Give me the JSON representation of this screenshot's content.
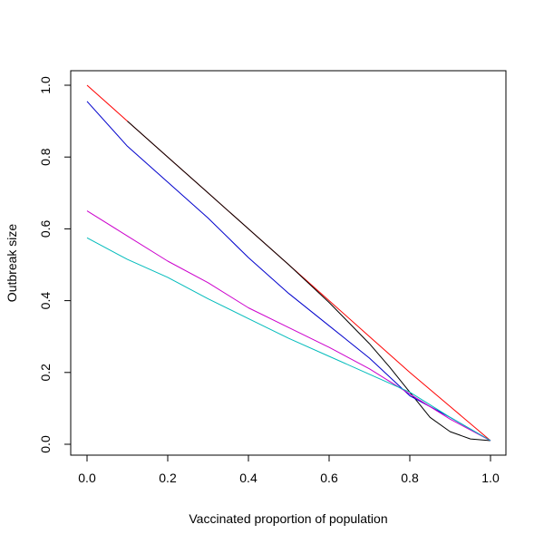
{
  "chart_data": {
    "type": "line",
    "title": "",
    "xlabel": "Vaccinated proportion of population",
    "ylabel": "Outbreak size",
    "xlim": [
      0.0,
      1.0
    ],
    "ylim": [
      0.0,
      1.0
    ],
    "x_ticks": [
      0.0,
      0.2,
      0.4,
      0.6,
      0.8,
      1.0
    ],
    "y_ticks": [
      0.0,
      0.2,
      0.4,
      0.6,
      0.8,
      1.0
    ],
    "x_tick_labels": [
      "0.0",
      "0.2",
      "0.4",
      "0.6",
      "0.8",
      "1.0"
    ],
    "y_tick_labels": [
      "0.0",
      "0.2",
      "0.4",
      "0.6",
      "0.8",
      "1.0"
    ],
    "grid": false,
    "legend": "none",
    "series": [
      {
        "color": "#ff0000",
        "x": [
          0.0,
          0.1,
          0.2,
          0.3,
          0.4,
          0.5,
          0.6,
          0.7,
          0.8,
          0.9,
          1.0
        ],
        "y": [
          1.0,
          0.9,
          0.8,
          0.7,
          0.6,
          0.5,
          0.4,
          0.3,
          0.2,
          0.105,
          0.01
        ]
      },
      {
        "color": "#000000",
        "x": [
          0.1,
          0.2,
          0.3,
          0.4,
          0.5,
          0.6,
          0.7,
          0.75,
          0.8,
          0.85,
          0.9,
          0.95,
          1.0
        ],
        "y": [
          0.9,
          0.8,
          0.7,
          0.6,
          0.5,
          0.395,
          0.28,
          0.215,
          0.145,
          0.075,
          0.035,
          0.015,
          0.01
        ]
      },
      {
        "color": "#0000cc",
        "x": [
          0.0,
          0.1,
          0.2,
          0.3,
          0.4,
          0.5,
          0.6,
          0.7,
          0.8,
          0.9,
          1.0
        ],
        "y": [
          0.955,
          0.83,
          0.73,
          0.63,
          0.52,
          0.42,
          0.33,
          0.24,
          0.135,
          0.075,
          0.01
        ]
      },
      {
        "color": "#cc00cc",
        "x": [
          0.0,
          0.1,
          0.2,
          0.3,
          0.4,
          0.5,
          0.6,
          0.7,
          0.8,
          0.9,
          1.0
        ],
        "y": [
          0.65,
          0.58,
          0.51,
          0.45,
          0.38,
          0.325,
          0.27,
          0.21,
          0.14,
          0.07,
          0.01
        ]
      },
      {
        "color": "#00bbbb",
        "x": [
          0.0,
          0.1,
          0.2,
          0.3,
          0.4,
          0.5,
          0.6,
          0.7,
          0.8,
          0.9,
          1.0
        ],
        "y": [
          0.575,
          0.515,
          0.465,
          0.405,
          0.35,
          0.295,
          0.245,
          0.195,
          0.145,
          0.075,
          0.01
        ]
      }
    ]
  }
}
